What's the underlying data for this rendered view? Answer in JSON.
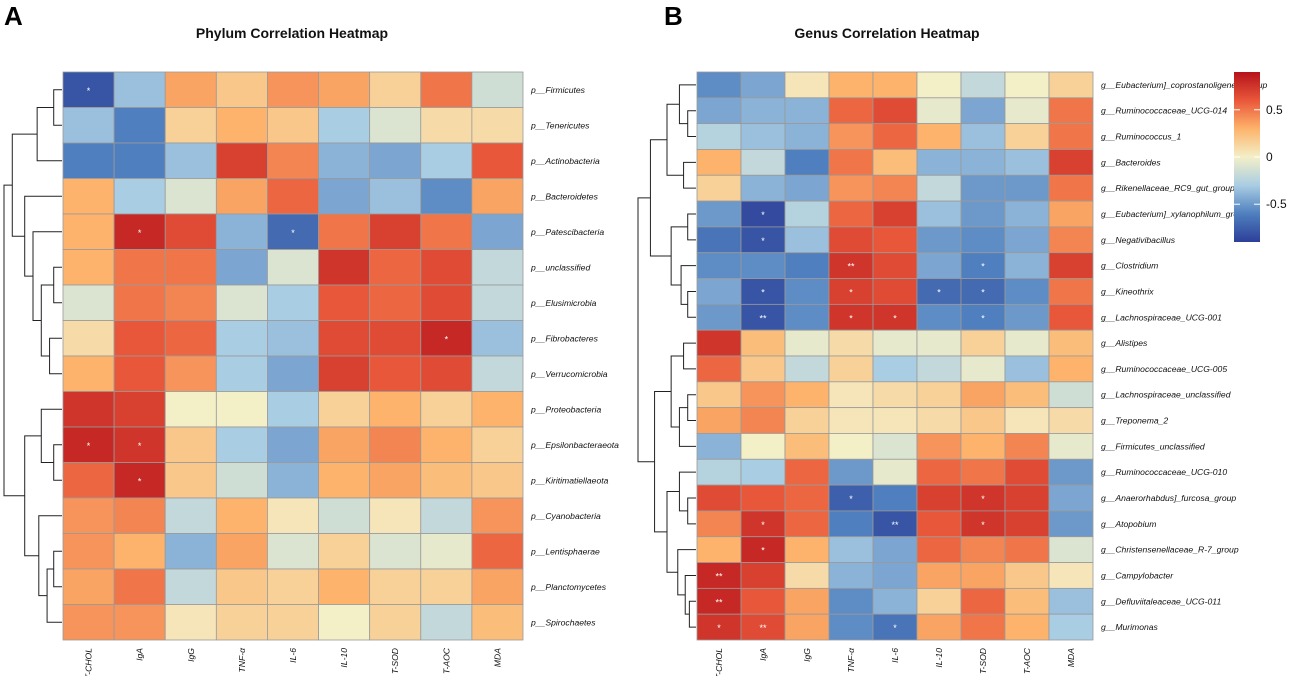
{
  "chart_data": [
    {
      "type": "heatmap",
      "panel_label": "A",
      "title": "Phylum Correlation Heatmap",
      "columns": [
        "T-CHOL",
        "IgA",
        "IgG",
        "TNF-α",
        "IL-6",
        "IL-10",
        "T-SOD",
        "T-AOC",
        "MDA"
      ],
      "rows": [
        "p__Firmicutes",
        "p__Tenericutes",
        "p__Actinobacteria",
        "p__Bacteroidetes",
        "p__Patescibacteria",
        "p__unclassified",
        "p__Elusimicrobia",
        "p__Fibrobacteres",
        "p__Verrucomicrobia",
        "p__Proteobacteria",
        "p__Epsilonbacteraeota",
        "p__Kiritimatiellaeota",
        "p__Cyanobacteria",
        "p__Lentisphaerae",
        "p__Planctomycetes",
        "p__Spirochaetes"
      ],
      "values": [
        [
          -0.8,
          -0.35,
          0.35,
          0.2,
          0.4,
          0.35,
          0.15,
          0.5,
          -0.15
        ],
        [
          -0.35,
          -0.6,
          0.15,
          0.3,
          0.2,
          -0.3,
          -0.1,
          0.1,
          0.1
        ],
        [
          -0.6,
          -0.6,
          -0.35,
          0.7,
          0.45,
          -0.4,
          -0.45,
          -0.3,
          0.6
        ],
        [
          0.3,
          -0.3,
          -0.1,
          0.35,
          0.55,
          -0.45,
          -0.35,
          -0.55,
          0.35
        ],
        [
          0.3,
          0.8,
          0.65,
          -0.4,
          -0.7,
          0.5,
          0.7,
          0.5,
          -0.45
        ],
        [
          0.3,
          0.5,
          0.5,
          -0.45,
          -0.1,
          0.75,
          0.55,
          0.65,
          -0.2
        ],
        [
          -0.1,
          0.5,
          0.45,
          -0.1,
          -0.3,
          0.6,
          0.55,
          0.65,
          -0.2
        ],
        [
          0.1,
          0.6,
          0.55,
          -0.3,
          -0.35,
          0.65,
          0.65,
          0.8,
          -0.35
        ],
        [
          0.3,
          0.6,
          0.4,
          -0.3,
          -0.45,
          0.7,
          0.6,
          0.65,
          -0.2
        ],
        [
          0.75,
          0.7,
          0.0,
          0.0,
          -0.3,
          0.15,
          0.3,
          0.15,
          0.3
        ],
        [
          0.8,
          0.75,
          0.2,
          -0.3,
          -0.45,
          0.35,
          0.45,
          0.3,
          0.15
        ],
        [
          0.55,
          0.8,
          0.2,
          -0.15,
          -0.4,
          0.3,
          0.35,
          0.25,
          0.2
        ],
        [
          0.4,
          0.45,
          -0.2,
          0.3,
          0.05,
          -0.15,
          0.05,
          -0.2,
          0.4
        ],
        [
          0.4,
          0.3,
          -0.4,
          0.35,
          -0.1,
          0.15,
          -0.1,
          -0.05,
          0.55
        ],
        [
          0.35,
          0.5,
          -0.2,
          0.2,
          0.15,
          0.3,
          0.15,
          0.15,
          0.35
        ],
        [
          0.4,
          0.4,
          0.05,
          0.15,
          0.15,
          0.0,
          0.15,
          -0.2,
          0.25
        ]
      ],
      "stars": [
        [
          "*",
          "",
          "",
          "",
          "",
          "",
          "",
          "",
          ""
        ],
        [
          "",
          "",
          "",
          "",
          "",
          "",
          "",
          "",
          ""
        ],
        [
          "",
          "",
          "",
          "",
          "",
          "",
          "",
          "",
          ""
        ],
        [
          "",
          "",
          "",
          "",
          "",
          "",
          "",
          "",
          ""
        ],
        [
          "",
          "*",
          "",
          "",
          "*",
          "",
          "",
          "",
          ""
        ],
        [
          "",
          "",
          "",
          "",
          "",
          "",
          "",
          "",
          ""
        ],
        [
          "",
          "",
          "",
          "",
          "",
          "",
          "",
          "",
          ""
        ],
        [
          "",
          "",
          "",
          "",
          "",
          "",
          "",
          "*",
          ""
        ],
        [
          "",
          "",
          "",
          "",
          "",
          "",
          "",
          "",
          ""
        ],
        [
          "",
          "",
          "",
          "",
          "",
          "",
          "",
          "",
          ""
        ],
        [
          "*",
          "*",
          "",
          "",
          "",
          "",
          "",
          "",
          ""
        ],
        [
          "",
          "*",
          "",
          "",
          "",
          "",
          "",
          "",
          ""
        ],
        [
          "",
          "",
          "",
          "",
          "",
          "",
          "",
          "",
          ""
        ],
        [
          "",
          "",
          "",
          "",
          "",
          "",
          "",
          "",
          ""
        ],
        [
          "",
          "",
          "",
          "",
          "",
          "",
          "",
          "",
          ""
        ],
        [
          "",
          "",
          "",
          "",
          "",
          "",
          "",
          "",
          ""
        ]
      ]
    },
    {
      "type": "heatmap",
      "panel_label": "B",
      "title": "Genus Correlation Heatmap",
      "columns": [
        "T-CHOL",
        "IgA",
        "IgG",
        "TNF-α",
        "IL-6",
        "IL-10",
        "T-SOD",
        "T-AOC",
        "MDA"
      ],
      "rows": [
        "g__Eubacterium]_coprostanoligenes_group",
        "g__Ruminococcaceae_UCG-014",
        "g__Ruminococcus_1",
        "g__Bacteroides",
        "g__Rikenellaceae_RC9_gut_group",
        "g__Eubacterium]_xylanophilum_group",
        "g__Negativibacillus",
        "g__Clostridium",
        "g__Kineothrix",
        "g__Lachnospiraceae_UCG-001",
        "g__Alistipes",
        "g__Ruminococcaceae_UCG-005",
        "g__Lachnospiraceae_unclassified",
        "g__Treponema_2",
        "g__Firmicutes_unclassified",
        "g__Ruminococcaceae_UCG-010",
        "g__Anaerorhabdus]_furcosa_group",
        "g__Atopobium",
        "g__Christensenellaceae_R-7_group",
        "g__Campylobacter",
        "g__Defluviitaleaceae_UCG-011",
        "g__Murimonas"
      ],
      "values": [
        [
          -0.55,
          -0.45,
          0.05,
          0.3,
          0.3,
          0.0,
          -0.2,
          0.0,
          0.15
        ],
        [
          -0.45,
          -0.4,
          -0.4,
          0.55,
          0.65,
          -0.05,
          -0.45,
          -0.05,
          0.5
        ],
        [
          -0.25,
          -0.35,
          -0.4,
          0.4,
          0.55,
          0.3,
          -0.35,
          0.15,
          0.5
        ],
        [
          0.3,
          -0.2,
          -0.6,
          0.5,
          0.25,
          -0.4,
          -0.4,
          -0.35,
          0.7
        ],
        [
          0.15,
          -0.4,
          -0.45,
          0.4,
          0.45,
          -0.2,
          -0.5,
          -0.5,
          0.5
        ],
        [
          -0.5,
          -0.85,
          -0.25,
          0.55,
          0.7,
          -0.35,
          -0.5,
          -0.4,
          0.35
        ],
        [
          -0.65,
          -0.8,
          -0.35,
          0.65,
          0.6,
          -0.5,
          -0.55,
          -0.45,
          0.45
        ],
        [
          -0.55,
          -0.55,
          -0.6,
          0.75,
          0.65,
          -0.45,
          -0.6,
          -0.4,
          0.7
        ],
        [
          -0.45,
          -0.8,
          -0.55,
          0.7,
          0.65,
          -0.7,
          -0.7,
          -0.55,
          0.5
        ],
        [
          -0.5,
          -0.8,
          -0.55,
          0.75,
          0.75,
          -0.55,
          -0.6,
          -0.5,
          0.6
        ],
        [
          0.75,
          0.25,
          -0.05,
          0.1,
          -0.05,
          -0.05,
          0.15,
          -0.05,
          0.25
        ],
        [
          0.55,
          0.2,
          -0.2,
          0.15,
          -0.3,
          -0.2,
          -0.05,
          -0.35,
          0.3
        ],
        [
          0.2,
          0.4,
          0.3,
          0.05,
          0.1,
          0.15,
          0.35,
          0.25,
          -0.15
        ],
        [
          0.35,
          0.45,
          0.15,
          0.05,
          0.05,
          0.1,
          0.2,
          0.05,
          0.1
        ],
        [
          -0.4,
          0.0,
          0.25,
          0.0,
          -0.1,
          0.4,
          0.3,
          0.45,
          -0.05
        ],
        [
          -0.25,
          -0.3,
          0.55,
          -0.5,
          -0.05,
          0.55,
          0.5,
          0.65,
          -0.5
        ],
        [
          0.65,
          0.6,
          0.55,
          -0.75,
          -0.6,
          0.7,
          0.75,
          0.7,
          -0.45
        ],
        [
          0.45,
          0.75,
          0.55,
          -0.6,
          -0.8,
          0.6,
          0.75,
          0.7,
          -0.5
        ],
        [
          0.3,
          0.8,
          0.3,
          -0.35,
          -0.45,
          0.55,
          0.45,
          0.5,
          -0.1
        ],
        [
          0.8,
          0.7,
          0.1,
          -0.4,
          -0.45,
          0.35,
          0.35,
          0.2,
          0.05
        ],
        [
          0.8,
          0.6,
          0.35,
          -0.55,
          -0.4,
          0.15,
          0.55,
          0.25,
          -0.35
        ],
        [
          0.75,
          0.65,
          0.35,
          -0.55,
          -0.65,
          0.35,
          0.5,
          0.3,
          -0.3
        ]
      ],
      "stars": [
        [
          "",
          "",
          "",
          "",
          "",
          "",
          "",
          "",
          ""
        ],
        [
          "",
          "",
          "",
          "",
          "",
          "",
          "",
          "",
          ""
        ],
        [
          "",
          "",
          "",
          "",
          "",
          "",
          "",
          "",
          ""
        ],
        [
          "",
          "",
          "",
          "",
          "",
          "",
          "",
          "",
          ""
        ],
        [
          "",
          "",
          "",
          "",
          "",
          "",
          "",
          "",
          ""
        ],
        [
          "",
          "*",
          "",
          "",
          "",
          "",
          "",
          "",
          ""
        ],
        [
          "",
          "*",
          "",
          "",
          "",
          "",
          "",
          "",
          ""
        ],
        [
          "",
          "",
          "",
          "**",
          "",
          "",
          "*",
          "",
          ""
        ],
        [
          "",
          "*",
          "",
          "*",
          "",
          "*",
          "*",
          "",
          ""
        ],
        [
          "",
          "**",
          "",
          "*",
          "*",
          "",
          "*",
          "",
          ""
        ],
        [
          "",
          "",
          "",
          "",
          "",
          "",
          "",
          "",
          ""
        ],
        [
          "",
          "",
          "",
          "",
          "",
          "",
          "",
          "",
          ""
        ],
        [
          "",
          "",
          "",
          "",
          "",
          "",
          "",
          "",
          ""
        ],
        [
          "",
          "",
          "",
          "",
          "",
          "",
          "",
          "",
          ""
        ],
        [
          "",
          "",
          "",
          "",
          "",
          "",
          "",
          "",
          ""
        ],
        [
          "",
          "",
          "",
          "",
          "",
          "",
          "",
          "",
          ""
        ],
        [
          "",
          "",
          "",
          "*",
          "",
          "",
          "*",
          "",
          ""
        ],
        [
          "",
          "*",
          "",
          "",
          "**",
          "",
          "*",
          "",
          ""
        ],
        [
          "",
          "*",
          "",
          "",
          "",
          "",
          "",
          "",
          ""
        ],
        [
          "**",
          "",
          "",
          "",
          "",
          "",
          "",
          "",
          ""
        ],
        [
          "**",
          "",
          "",
          "",
          "",
          "",
          "",
          "",
          ""
        ],
        [
          "*",
          "**",
          "",
          "",
          "*",
          "",
          "",
          "",
          ""
        ]
      ]
    }
  ],
  "legend": {
    "tick_labels": [
      "0.5",
      "0",
      "-0.5"
    ],
    "tick_values": [
      0.5,
      0,
      -0.5
    ],
    "range": [
      -0.9,
      0.9
    ],
    "colors": [
      "#2d3f99",
      "#4f7fbe",
      "#a9cde3",
      "#f3efc7",
      "#fdb36b",
      "#e9573a",
      "#b5121b"
    ]
  }
}
